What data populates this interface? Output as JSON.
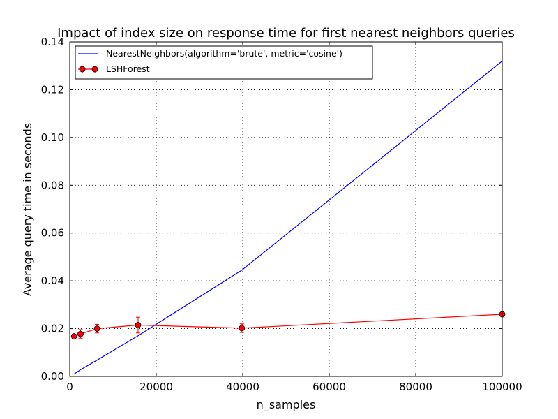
{
  "chart_data": {
    "type": "line",
    "title": "Impact of index size on response time for first nearest neighbors queries",
    "xlabel": "n_samples",
    "ylabel": "Average query time in seconds",
    "xlim": [
      0,
      100000
    ],
    "ylim": [
      0,
      0.14
    ],
    "xticks": [
      0,
      20000,
      40000,
      60000,
      80000,
      100000
    ],
    "xtick_labels": [
      "0",
      "20000",
      "40000",
      "60000",
      "80000",
      "100000"
    ],
    "yticks": [
      0,
      0.02,
      0.04,
      0.06,
      0.08,
      0.1,
      0.12,
      0.14
    ],
    "ytick_labels": [
      "0.00",
      "0.02",
      "0.04",
      "0.06",
      "0.08",
      "0.10",
      "0.12",
      "0.14"
    ],
    "grid": true,
    "legend_position": "top-left",
    "series": [
      {
        "name": "NearestNeighbors(algorithm='brute', metric='cosine')",
        "color": "#0000ff",
        "marker": "none",
        "x": [
          1000,
          2500,
          6300,
          15800,
          39800,
          100000
        ],
        "y": [
          0.001,
          0.0028,
          0.0068,
          0.017,
          0.0445,
          0.132
        ]
      },
      {
        "name": "LSHForest",
        "color": "#ff0000",
        "marker": "circle",
        "error_bars": true,
        "x": [
          1000,
          2500,
          6300,
          15800,
          39800,
          100000
        ],
        "y": [
          0.0168,
          0.0178,
          0.02,
          0.0215,
          0.0202,
          0.026
        ],
        "err": [
          0.0008,
          0.0018,
          0.0018,
          0.0033,
          0.0018,
          0.0008
        ]
      }
    ]
  }
}
